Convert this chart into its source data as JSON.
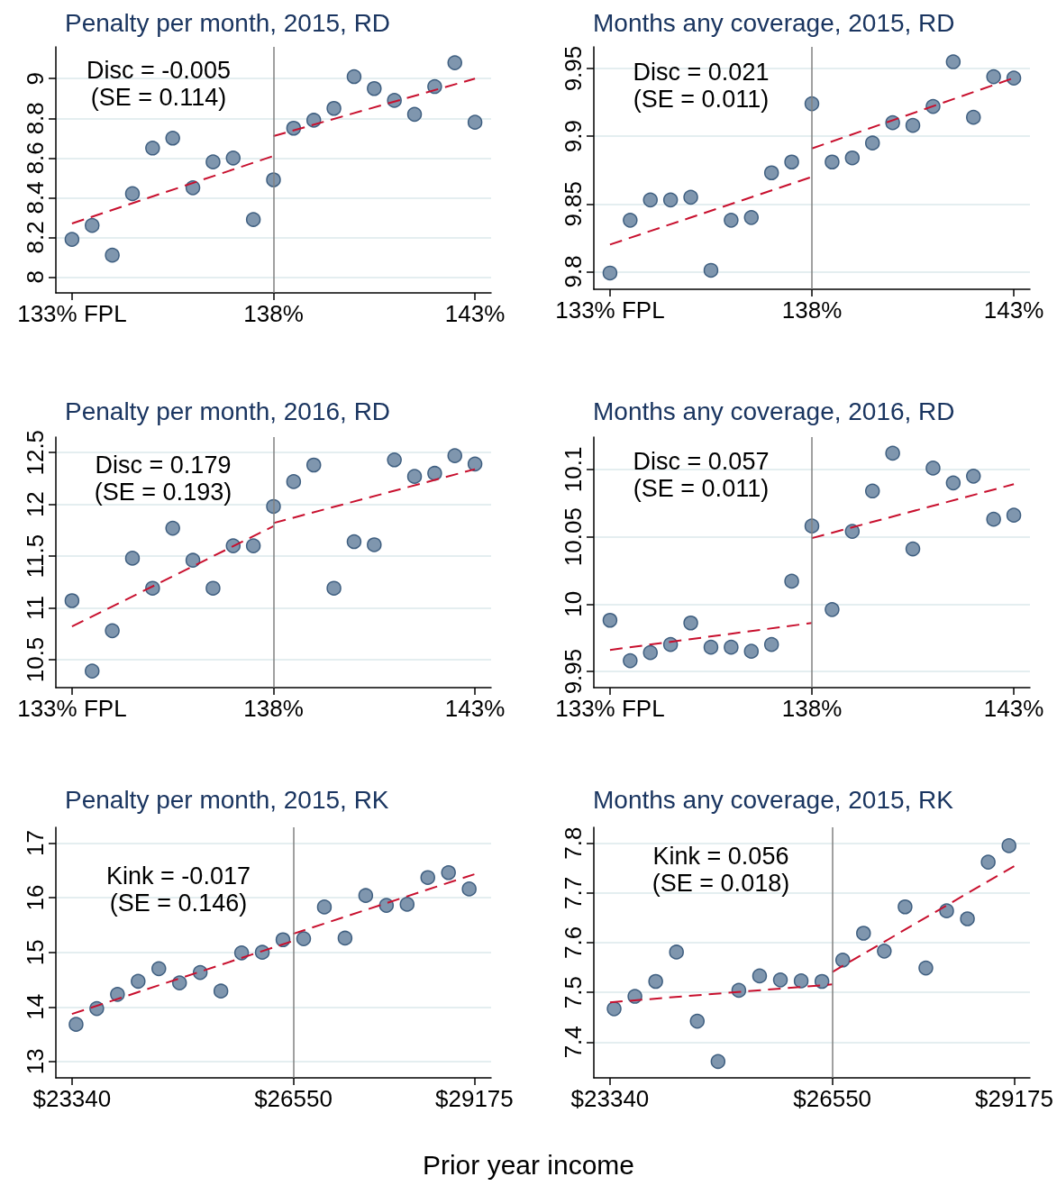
{
  "chart_data": [
    {
      "type": "scatter",
      "title": "Penalty per month, 2015, RD",
      "annotations": [
        "Disc = -0.005",
        "(SE = 0.114)"
      ],
      "x": [
        133,
        133.5,
        134,
        134.5,
        135,
        135.5,
        136,
        136.5,
        137,
        137.5,
        138,
        138.5,
        139,
        139.5,
        140,
        140.5,
        141,
        141.5,
        142,
        142.5,
        143
      ],
      "series": [
        {
          "color": "#7f96ae",
          "marker": "circle",
          "values": [
            8.19,
            8.26,
            8.11,
            8.42,
            8.65,
            8.7,
            8.45,
            8.58,
            8.6,
            8.29,
            8.49,
            8.75,
            8.79,
            8.85,
            9.01,
            8.95,
            8.89,
            8.82,
            8.96,
            9.08,
            8.78
          ]
        },
        {
          "type": "line",
          "color": "#c8102e",
          "marker": "none",
          "line_style": "dashed",
          "x": [
            133,
            138
          ],
          "values": [
            8.27,
            8.61
          ]
        },
        {
          "type": "line",
          "color": "#c8102e",
          "marker": "none",
          "line_style": "dashed",
          "x": [
            138,
            143
          ],
          "values": [
            8.71,
            9.0
          ]
        }
      ],
      "xlim": [
        132.6,
        143.4
      ],
      "xticks": [
        {
          "value": 133,
          "label": "133% FPL"
        },
        {
          "value": 138,
          "label": "138%"
        },
        {
          "value": 143,
          "label": "143%"
        }
      ],
      "ylim": [
        7.92,
        9.16
      ],
      "yticks": [
        8,
        8.2,
        8.4,
        8.6,
        8.8,
        9
      ],
      "grid": "y",
      "ref_lines": [
        {
          "axis": "x",
          "value": 138,
          "color": "#808080"
        }
      ]
    },
    {
      "type": "scatter",
      "title": "Months any coverage, 2015, RD",
      "annotations": [
        "Disc = 0.021",
        "(SE = 0.011)"
      ],
      "x": [
        133,
        133.5,
        134,
        134.5,
        135,
        135.5,
        136,
        136.5,
        137,
        137.5,
        138,
        138.5,
        139,
        139.5,
        140,
        140.5,
        141,
        141.5,
        142,
        142.5,
        143
      ],
      "series": [
        {
          "color": "#7f96ae",
          "marker": "circle",
          "values": [
            9.799,
            9.838,
            9.853,
            9.853,
            9.855,
            9.801,
            9.838,
            9.84,
            9.873,
            9.881,
            9.924,
            9.881,
            9.884,
            9.895,
            9.91,
            9.908,
            9.922,
            9.955,
            9.914,
            9.944,
            9.943
          ]
        },
        {
          "type": "line",
          "color": "#c8102e",
          "marker": "none",
          "line_style": "dashed",
          "x": [
            133,
            138
          ],
          "values": [
            9.82,
            9.87
          ]
        },
        {
          "type": "line",
          "color": "#c8102e",
          "marker": "none",
          "line_style": "dashed",
          "x": [
            138,
            143
          ],
          "values": [
            9.891,
            9.943
          ]
        }
      ],
      "xlim": [
        132.6,
        143.4
      ],
      "xticks": [
        {
          "value": 133,
          "label": "133% FPL"
        },
        {
          "value": 138,
          "label": "138%"
        },
        {
          "value": 143,
          "label": "143%"
        }
      ],
      "ylim": [
        9.787,
        9.966
      ],
      "yticks": [
        9.8,
        9.85,
        9.9,
        9.95
      ],
      "grid": "y",
      "ref_lines": [
        {
          "axis": "x",
          "value": 138,
          "color": "#808080"
        }
      ]
    },
    {
      "type": "scatter",
      "title": "Penalty per month, 2016, RD",
      "annotations": [
        "Disc = 0.179",
        "(SE = 0.193)"
      ],
      "x": [
        133,
        133.5,
        134,
        134.5,
        135,
        135.5,
        136,
        136.5,
        137,
        137.5,
        138,
        138.5,
        139,
        139.5,
        140,
        140.5,
        141,
        141.5,
        142,
        142.5,
        143
      ],
      "series": [
        {
          "color": "#7f96ae",
          "marker": "circle",
          "values": [
            11.07,
            10.39,
            10.78,
            11.48,
            11.19,
            11.77,
            11.46,
            11.19,
            11.6,
            11.6,
            11.98,
            12.22,
            12.38,
            11.19,
            11.64,
            11.61,
            12.43,
            12.27,
            12.3,
            12.47,
            12.39
          ]
        },
        {
          "type": "line",
          "color": "#c8102e",
          "marker": "none",
          "line_style": "dashed",
          "x": [
            133,
            138
          ],
          "values": [
            10.82,
            11.79
          ]
        },
        {
          "type": "line",
          "color": "#c8102e",
          "marker": "none",
          "line_style": "dashed",
          "x": [
            138,
            143
          ],
          "values": [
            11.82,
            12.34
          ]
        }
      ],
      "xlim": [
        132.6,
        143.4
      ],
      "xticks": [
        {
          "value": 133,
          "label": "133% FPL"
        },
        {
          "value": 138,
          "label": "138%"
        },
        {
          "value": 143,
          "label": "143%"
        }
      ],
      "ylim": [
        10.23,
        12.65
      ],
      "yticks": [
        10.5,
        11,
        11.5,
        12,
        12.5
      ],
      "grid": "y",
      "ref_lines": [
        {
          "axis": "x",
          "value": 138,
          "color": "#808080"
        }
      ]
    },
    {
      "type": "scatter",
      "title": "Months any coverage, 2016, RD",
      "annotations": [
        "Disc = 0.057",
        "(SE = 0.011)"
      ],
      "x": [
        133,
        133.5,
        134,
        134.5,
        135,
        135.5,
        136,
        136.5,
        137,
        137.5,
        138,
        138.5,
        139,
        139.5,
        140,
        140.5,
        141,
        141.5,
        142,
        142.5,
        143
      ],
      "series": [
        {
          "color": "#7f96ae",
          "marker": "circle",
          "values": [
            9.988,
            9.958,
            9.964,
            9.97,
            9.986,
            9.968,
            9.968,
            9.965,
            9.97,
            10.017,
            10.058,
            9.996,
            10.054,
            10.084,
            10.112,
            10.041,
            10.101,
            10.09,
            10.095,
            10.063,
            10.066
          ]
        },
        {
          "type": "line",
          "color": "#c8102e",
          "marker": "none",
          "line_style": "dashed",
          "x": [
            133,
            138
          ],
          "values": [
            9.966,
            9.986
          ]
        },
        {
          "type": "line",
          "color": "#c8102e",
          "marker": "none",
          "line_style": "dashed",
          "x": [
            138,
            143
          ],
          "values": [
            10.049,
            10.089
          ]
        }
      ],
      "xlim": [
        132.6,
        143.4
      ],
      "xticks": [
        {
          "value": 133,
          "label": "133% FPL"
        },
        {
          "value": 138,
          "label": "138%"
        },
        {
          "value": 143,
          "label": "143%"
        }
      ],
      "ylim": [
        9.938,
        10.124
      ],
      "yticks": [
        9.95,
        10,
        10.05,
        10.1
      ],
      "grid": "y",
      "ref_lines": [
        {
          "axis": "x",
          "value": 138,
          "color": "#808080"
        }
      ]
    },
    {
      "type": "scatter",
      "title": "Penalty per month, 2015, RK",
      "xlabel": "Prior year income",
      "annotations": [
        "Kink = -0.017",
        "(SE = 0.146)"
      ],
      "x": [
        23400,
        23700,
        24000,
        24300,
        24600,
        24900,
        25200,
        25500,
        25800,
        26100,
        26400,
        26700,
        27000,
        27300,
        27600,
        27900,
        28200,
        28500,
        28800,
        29100
      ],
      "series": [
        {
          "color": "#7f96ae",
          "marker": "circle",
          "values": [
            13.68,
            13.97,
            14.23,
            14.47,
            14.7,
            14.44,
            14.63,
            14.29,
            14.99,
            15.0,
            15.23,
            15.25,
            15.83,
            15.26,
            16.04,
            15.86,
            15.88,
            16.37,
            16.46,
            16.16
          ]
        },
        {
          "type": "line",
          "color": "#c8102e",
          "marker": "none",
          "line_style": "dashed",
          "x": [
            23340,
            26550
          ],
          "values": [
            13.87,
            15.21
          ]
        },
        {
          "type": "line",
          "color": "#c8102e",
          "marker": "none",
          "line_style": "dashed",
          "x": [
            26550,
            29175
          ],
          "values": [
            15.34,
            16.43
          ]
        }
      ],
      "xlim": [
        23107,
        29418
      ],
      "xticks": [
        {
          "value": 23340,
          "label": "$23340"
        },
        {
          "value": 26550,
          "label": "$26550"
        },
        {
          "value": 29175,
          "label": "$29175"
        }
      ],
      "ylim": [
        12.7,
        17.29
      ],
      "yticks": [
        13,
        14,
        15,
        16,
        17
      ],
      "grid": "y",
      "ref_lines": [
        {
          "axis": "x",
          "value": 26550,
          "color": "#808080"
        }
      ]
    },
    {
      "type": "scatter",
      "title": "Months any coverage, 2015, RK",
      "annotations": [
        "Kink = 0.056",
        "(SE = 0.018)"
      ],
      "x": [
        23400,
        23700,
        24000,
        24300,
        24600,
        24900,
        25200,
        25500,
        25800,
        26100,
        26400,
        26700,
        27000,
        27300,
        27600,
        27900,
        28200,
        28500,
        28800,
        29100
      ],
      "series": [
        {
          "color": "#7f96ae",
          "marker": "circle",
          "values": [
            7.467,
            7.492,
            7.522,
            7.581,
            7.442,
            7.361,
            7.504,
            7.533,
            7.525,
            7.523,
            7.522,
            7.565,
            7.619,
            7.583,
            7.672,
            7.549,
            7.664,
            7.648,
            7.762,
            7.795
          ]
        },
        {
          "type": "line",
          "color": "#c8102e",
          "marker": "none",
          "line_style": "dashed",
          "x": [
            23340,
            26550
          ],
          "values": [
            7.48,
            7.516
          ]
        },
        {
          "type": "line",
          "color": "#c8102e",
          "marker": "none",
          "line_style": "dashed",
          "x": [
            26550,
            29175
          ],
          "values": [
            7.541,
            7.754
          ]
        }
      ],
      "xlim": [
        23107,
        29403
      ],
      "xticks": [
        {
          "value": 23340,
          "label": "$23340"
        },
        {
          "value": 26550,
          "label": "$26550"
        },
        {
          "value": 29175,
          "label": "$29175"
        }
      ],
      "ylim": [
        7.328,
        7.832
      ],
      "yticks": [
        7.4,
        7.5,
        7.6,
        7.7,
        7.8
      ],
      "grid": "y",
      "ref_lines": [
        {
          "axis": "x",
          "value": 26550,
          "color": "#808080"
        }
      ]
    }
  ]
}
